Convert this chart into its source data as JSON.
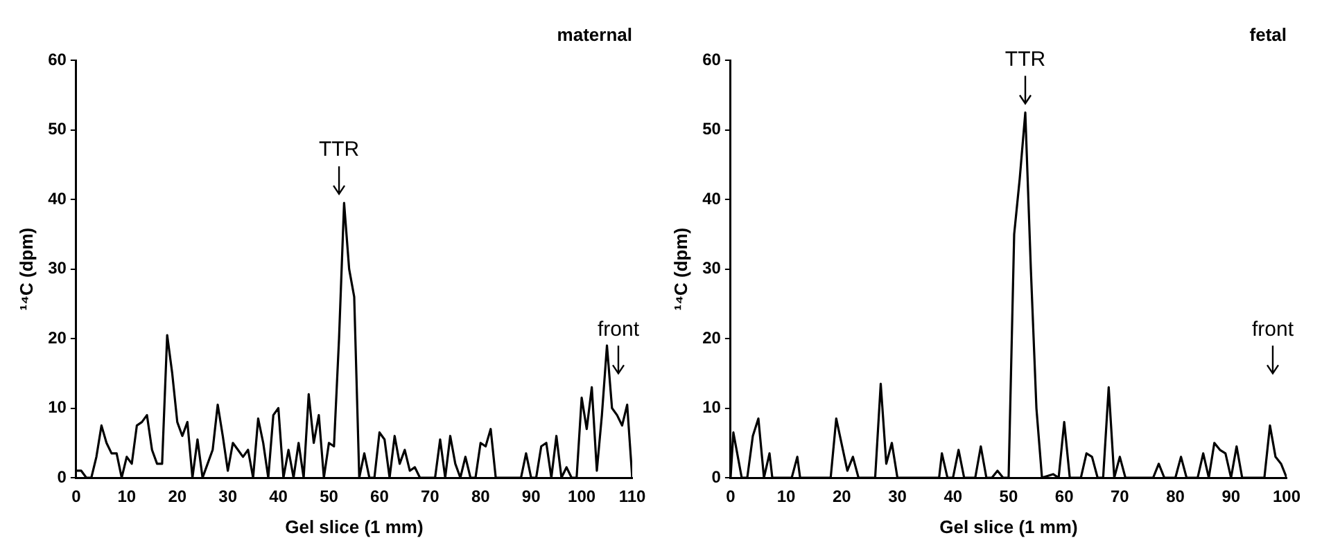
{
  "chart_data": [
    {
      "type": "line",
      "title": "maternal",
      "xlabel": "Gel slice (1 mm)",
      "ylabel": "¹⁴C (dpm)",
      "xlim": [
        0,
        110
      ],
      "xticks": [
        0,
        10,
        20,
        30,
        40,
        50,
        60,
        70,
        80,
        90,
        100,
        110
      ],
      "ylim": [
        0,
        60
      ],
      "yticks": [
        0,
        10,
        20,
        30,
        40,
        50,
        60
      ],
      "grid": false,
      "legend": false,
      "marker": "none",
      "annotations": [
        {
          "text": "TTR",
          "x": 52,
          "y": 40
        },
        "front"
      ],
      "series": [
        {
          "color": "#000000",
          "x": [
            0,
            1,
            2,
            3,
            4,
            5,
            6,
            7,
            8,
            9,
            10,
            11,
            12,
            13,
            14,
            15,
            16,
            17,
            18,
            19,
            20,
            21,
            22,
            23,
            24,
            25,
            26,
            27,
            28,
            29,
            30,
            31,
            32,
            33,
            34,
            35,
            36,
            37,
            38,
            39,
            40,
            41,
            42,
            43,
            44,
            45,
            46,
            47,
            48,
            49,
            50,
            51,
            52,
            53,
            54,
            55,
            56,
            57,
            58,
            59,
            60,
            61,
            62,
            63,
            64,
            65,
            66,
            67,
            68,
            69,
            70,
            71,
            72,
            73,
            74,
            75,
            76,
            77,
            78,
            79,
            80,
            81,
            82,
            83,
            84,
            85,
            86,
            87,
            88,
            89,
            90,
            91,
            92,
            93,
            94,
            95,
            96,
            97,
            98,
            99,
            100,
            101,
            102,
            103,
            104,
            105,
            106,
            107,
            108,
            109,
            110
          ],
          "values": [
            1,
            1,
            0,
            0,
            3,
            7.5,
            5,
            3.5,
            3.5,
            0,
            3,
            2,
            7.5,
            8,
            9,
            4,
            2,
            2,
            20.5,
            15,
            8,
            6,
            8,
            0,
            5.5,
            0,
            2,
            4,
            10.5,
            6,
            1,
            5,
            4,
            3,
            4,
            0,
            8.5,
            5,
            0,
            9,
            10,
            0,
            4,
            0,
            5,
            0,
            12,
            5,
            9,
            0,
            5,
            4.5,
            20,
            39.5,
            30,
            26,
            0,
            3.5,
            0,
            0,
            6.5,
            5.5,
            0,
            6,
            2,
            4,
            1,
            1.5,
            0,
            0,
            0,
            0,
            5.5,
            0,
            6,
            2,
            0,
            3,
            0,
            0,
            5,
            4.5,
            7,
            0,
            0,
            0,
            0,
            0,
            0,
            3.5,
            0,
            0,
            4.5,
            5,
            0,
            6,
            0,
            1.5,
            0,
            0,
            11.5,
            7,
            13,
            1,
            9,
            19,
            10,
            9,
            7.5,
            10.5,
            0
          ]
        }
      ]
    },
    {
      "type": "line",
      "title": "fetal",
      "xlabel": "Gel slice (1 mm)",
      "ylabel": "¹⁴C (dpm)",
      "xlim": [
        0,
        100
      ],
      "xticks": [
        0,
        10,
        20,
        30,
        40,
        50,
        60,
        70,
        80,
        90,
        100
      ],
      "ylim": [
        0,
        60
      ],
      "yticks": [
        0,
        10,
        20,
        30,
        40,
        50,
        60
      ],
      "grid": false,
      "legend": false,
      "marker": "none",
      "annotations": [
        {
          "text": "TTR",
          "x": 53,
          "y": 53
        },
        "front"
      ],
      "series": [
        {
          "color": "#000000",
          "x": [
            0,
            0.5,
            2,
            3,
            4,
            5,
            6,
            7,
            7.5,
            11,
            12,
            12.5,
            18,
            19,
            21,
            22,
            23,
            26,
            27,
            28,
            29,
            30,
            37.5,
            38,
            39,
            40,
            41,
            42,
            44,
            45,
            46,
            47,
            48,
            49,
            50,
            51,
            52,
            53,
            54,
            55,
            56,
            58,
            59,
            60,
            61,
            63,
            64,
            65,
            66,
            67,
            68,
            69,
            70,
            71,
            76,
            77,
            78,
            80,
            81,
            82,
            84,
            85,
            86,
            87,
            88,
            89,
            90,
            91,
            92,
            96,
            97,
            98,
            99,
            100
          ],
          "values": [
            0,
            6.5,
            0,
            0,
            6,
            8.5,
            0,
            3.5,
            0,
            0,
            3,
            0,
            0,
            8.5,
            1,
            3,
            0,
            0,
            13.5,
            2,
            5,
            0,
            0,
            3.5,
            0,
            0,
            4,
            0,
            0,
            4.5,
            0,
            0,
            1,
            0,
            0,
            35,
            43,
            52.5,
            30,
            10,
            0,
            0.5,
            0,
            8,
            0,
            0,
            3.5,
            3,
            0,
            0,
            13,
            0,
            3,
            0,
            0,
            2,
            0,
            0,
            3,
            0,
            0,
            3.5,
            0,
            5,
            4,
            3.5,
            0,
            4.5,
            0,
            0,
            7.5,
            3,
            2,
            0
          ]
        }
      ]
    }
  ]
}
